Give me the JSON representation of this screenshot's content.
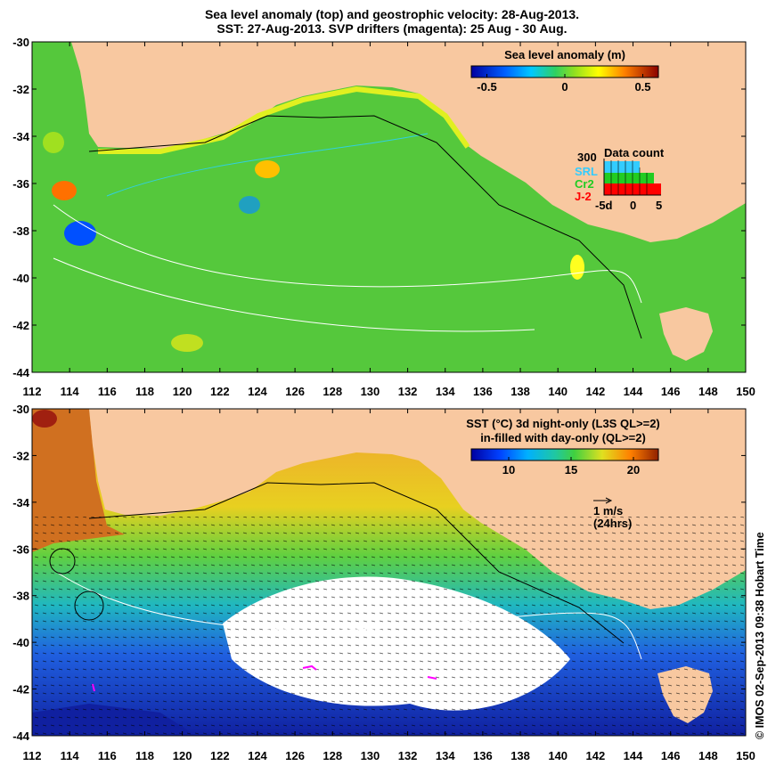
{
  "title_line1": "Sea level anomaly (top) and geostrophic velocity: 28-Aug-2013.",
  "title_line2": "SST: 27-Aug-2013. SVP drifters (magenta): 25 Aug - 30 Aug.",
  "credit": "© IMOS 02-Sep-2013 09:38 Hobart Time",
  "colors": {
    "land": "#f8c8a0",
    "ocean_sla": "#55c83c",
    "cloud": "#ffffff",
    "drifter": "#ff00ff"
  },
  "map": {
    "lon_ticks": [
      "112",
      "114",
      "116",
      "118",
      "120",
      "122",
      "124",
      "126",
      "128",
      "130",
      "132",
      "134",
      "136",
      "138",
      "140",
      "142",
      "144",
      "146",
      "148",
      "150"
    ],
    "lat_ticks": [
      "-30",
      "-32",
      "-34",
      "-36",
      "-38",
      "-40",
      "-42",
      "-44"
    ],
    "lon_range": [
      112,
      150
    ],
    "lat_range": [
      -44,
      -30
    ]
  },
  "sla_legend": {
    "title": "Sea level anomaly (m)",
    "ticks": [
      "-0.5",
      "0",
      "0.5"
    ],
    "range": [
      -0.6,
      0.6
    ]
  },
  "data_count": {
    "title": "Data count",
    "max_label": "300",
    "x_labels": [
      "-5d",
      "0",
      "5"
    ],
    "satellites": [
      {
        "name": "SRL",
        "color": "#33ccff"
      },
      {
        "name": "Cr2",
        "color": "#22cc22"
      },
      {
        "name": "J-2",
        "color": "#ff0000"
      }
    ]
  },
  "sst_legend": {
    "title_line1": "SST (°C)  3d night-only (L3S QL>=2)",
    "title_line2": "in-filled with day-only (QL>=2)",
    "ticks": [
      "10",
      "15",
      "20"
    ],
    "range": [
      7,
      22
    ]
  },
  "velocity_scale": {
    "label1": "1 m/s",
    "label2": "(24hrs)"
  }
}
